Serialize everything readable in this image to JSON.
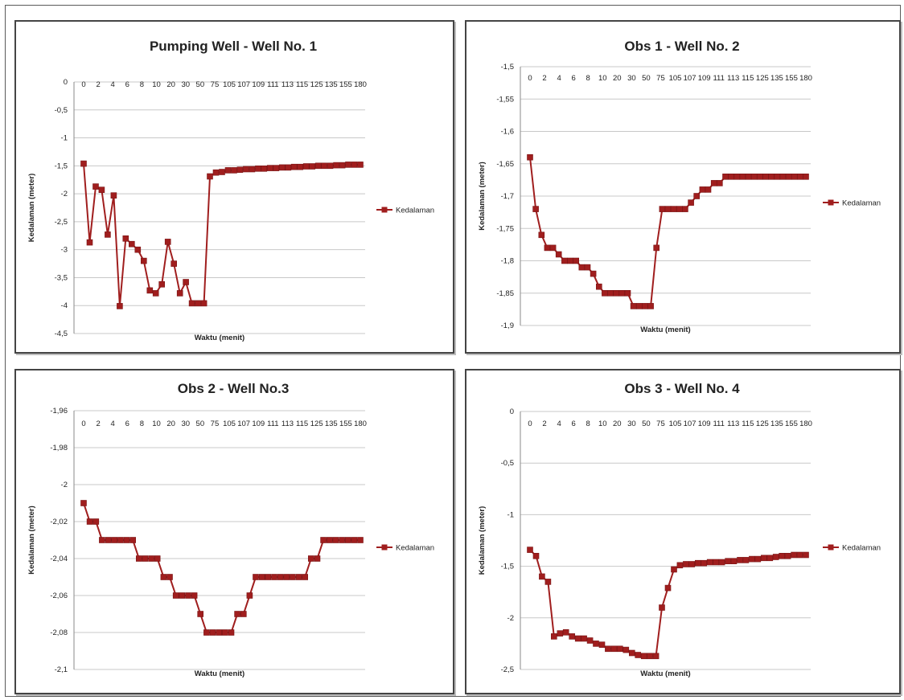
{
  "chart_data": [
    {
      "type": "line",
      "title": "Pumping Well - Well No. 1",
      "xlabel": "Waktu (menit)",
      "ylabel": "Kedalaman  (meter)",
      "ylim": [
        -4.5,
        0
      ],
      "yticks": [
        "0",
        "-0,5",
        "-1",
        "-1,5",
        "-2",
        "-2,5",
        "-3",
        "-3,5",
        "-4",
        "-4,5"
      ],
      "x_tick_labels": [
        "0",
        "2",
        "4",
        "6",
        "8",
        "10",
        "20",
        "30",
        "50",
        "75",
        "105",
        "107",
        "109",
        "111",
        "113",
        "115",
        "125",
        "135",
        "155",
        "180"
      ],
      "grid": true,
      "legend_position": "right",
      "series": [
        {
          "name": "Kedalaman",
          "color": "#a01e1e",
          "values": [
            -1.46,
            -2.87,
            -1.87,
            -1.93,
            -2.73,
            -2.03,
            -4.01,
            -2.8,
            -2.9,
            -3.0,
            -3.2,
            -3.73,
            -3.78,
            -3.62,
            -2.86,
            -3.25,
            -3.78,
            -3.58,
            -3.96,
            -3.96,
            -3.96,
            -1.69,
            -1.62,
            -1.61,
            -1.58,
            -1.58,
            -1.57,
            -1.56,
            -1.56,
            -1.55,
            -1.55,
            -1.54,
            -1.54,
            -1.53,
            -1.53,
            -1.52,
            -1.52,
            -1.51,
            -1.51,
            -1.5,
            -1.5,
            -1.5,
            -1.49,
            -1.49,
            -1.48,
            -1.48,
            -1.48
          ]
        }
      ]
    },
    {
      "type": "line",
      "title": "Obs 1 - Well No. 2",
      "xlabel": "Waktu (menit)",
      "ylabel": "Kedalaman  (meter)",
      "ylim": [
        -1.9,
        -1.5
      ],
      "yticks": [
        "-1,5",
        "-1,55",
        "-1,6",
        "-1,65",
        "-1,7",
        "-1,75",
        "-1,8",
        "-1,85",
        "-1,9"
      ],
      "x_tick_labels": [
        "0",
        "2",
        "4",
        "6",
        "8",
        "10",
        "20",
        "30",
        "50",
        "75",
        "105",
        "107",
        "109",
        "111",
        "113",
        "115",
        "125",
        "135",
        "155",
        "180"
      ],
      "grid": true,
      "legend_position": "right",
      "series": [
        {
          "name": "Kedalaman",
          "color": "#a01e1e",
          "values": [
            -1.64,
            -1.72,
            -1.76,
            -1.78,
            -1.78,
            -1.79,
            -1.8,
            -1.8,
            -1.8,
            -1.81,
            -1.81,
            -1.82,
            -1.84,
            -1.85,
            -1.85,
            -1.85,
            -1.85,
            -1.85,
            -1.87,
            -1.87,
            -1.87,
            -1.87,
            -1.78,
            -1.72,
            -1.72,
            -1.72,
            -1.72,
            -1.72,
            -1.71,
            -1.7,
            -1.69,
            -1.69,
            -1.68,
            -1.68,
            -1.67,
            -1.67,
            -1.67,
            -1.67,
            -1.67,
            -1.67,
            -1.67,
            -1.67,
            -1.67,
            -1.67,
            -1.67,
            -1.67,
            -1.67,
            -1.67,
            -1.67
          ]
        }
      ]
    },
    {
      "type": "line",
      "title": "Obs 2 - Well No.3",
      "xlabel": "Waktu (menit)",
      "ylabel": "Kedalaman  (meter)",
      "ylim": [
        -2.1,
        -1.96
      ],
      "yticks": [
        "-1,96",
        "-1,98",
        "-2",
        "-2,02",
        "-2,04",
        "-2,06",
        "-2,08",
        "-2,1"
      ],
      "x_tick_labels": [
        "0",
        "2",
        "4",
        "6",
        "8",
        "10",
        "20",
        "30",
        "50",
        "75",
        "105",
        "107",
        "109",
        "111",
        "113",
        "115",
        "125",
        "135",
        "155",
        "180"
      ],
      "grid": true,
      "legend_position": "right",
      "series": [
        {
          "name": "Kedalaman",
          "color": "#a01e1e",
          "values": [
            -2.01,
            -2.02,
            -2.02,
            -2.03,
            -2.03,
            -2.03,
            -2.03,
            -2.03,
            -2.03,
            -2.04,
            -2.04,
            -2.04,
            -2.04,
            -2.05,
            -2.05,
            -2.06,
            -2.06,
            -2.06,
            -2.06,
            -2.07,
            -2.08,
            -2.08,
            -2.08,
            -2.08,
            -2.08,
            -2.07,
            -2.07,
            -2.06,
            -2.05,
            -2.05,
            -2.05,
            -2.05,
            -2.05,
            -2.05,
            -2.05,
            -2.05,
            -2.05,
            -2.04,
            -2.04,
            -2.03,
            -2.03,
            -2.03,
            -2.03,
            -2.03,
            -2.03,
            -2.03
          ]
        }
      ]
    },
    {
      "type": "line",
      "title": "Obs 3 - Well No. 4",
      "xlabel": "Waktu (menit)",
      "ylabel": "Kedalaman  (meter)",
      "ylim": [
        -2.5,
        0
      ],
      "yticks": [
        "0",
        "-0,5",
        "-1",
        "-1,5",
        "-2",
        "-2,5"
      ],
      "x_tick_labels": [
        "0",
        "2",
        "4",
        "6",
        "8",
        "10",
        "20",
        "30",
        "50",
        "75",
        "105",
        "107",
        "109",
        "111",
        "113",
        "115",
        "125",
        "135",
        "155",
        "180"
      ],
      "grid": true,
      "legend_position": "right",
      "series": [
        {
          "name": "Kedalaman",
          "color": "#a01e1e",
          "values": [
            -1.34,
            -1.4,
            -1.6,
            -1.65,
            -2.18,
            -2.15,
            -2.14,
            -2.18,
            -2.2,
            -2.2,
            -2.22,
            -2.25,
            -2.26,
            -2.3,
            -2.3,
            -2.3,
            -2.31,
            -2.34,
            -2.36,
            -2.37,
            -2.37,
            -2.37,
            -1.9,
            -1.71,
            -1.53,
            -1.49,
            -1.48,
            -1.48,
            -1.47,
            -1.47,
            -1.46,
            -1.46,
            -1.46,
            -1.45,
            -1.45,
            -1.44,
            -1.44,
            -1.43,
            -1.43,
            -1.42,
            -1.42,
            -1.41,
            -1.4,
            -1.4,
            -1.39,
            -1.39,
            -1.39
          ]
        }
      ]
    }
  ]
}
